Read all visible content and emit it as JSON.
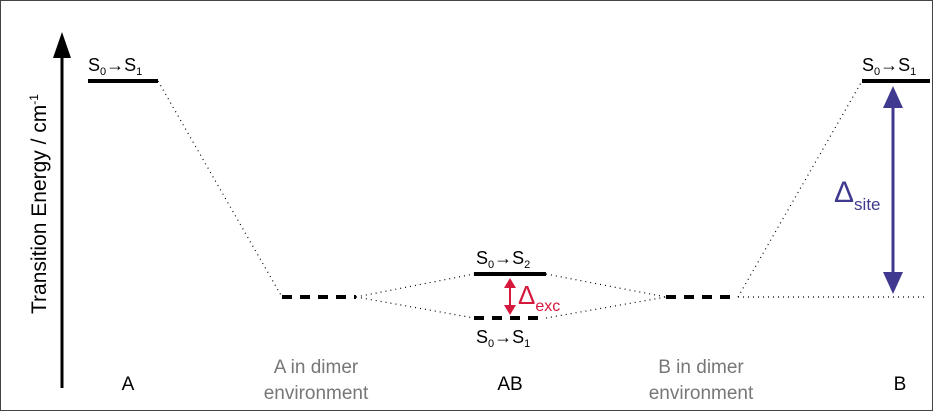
{
  "axis": {
    "ylabel": "Transition Energy / cm",
    "ylabel_sup": "-1"
  },
  "levels": {
    "a_s0s1": {
      "s": "S",
      "sub0": "0",
      "arrow": "→",
      "sub1": "1"
    },
    "b_s0s1": {
      "s": "S",
      "sub0": "0",
      "arrow": "→",
      "sub1": "1"
    },
    "ab_s0s2": {
      "s": "S",
      "sub0": "0",
      "arrow": "→",
      "sub1": "2"
    },
    "ab_s0s1": {
      "s": "S",
      "sub0": "0",
      "arrow": "→",
      "sub1": "1"
    }
  },
  "deltas": {
    "exc": {
      "symbol": "Δ",
      "sub": "exc",
      "color": "#d6183d"
    },
    "site": {
      "symbol": "Δ",
      "sub": "site",
      "color": "#3f3a8f"
    }
  },
  "columns": {
    "a": "A",
    "a_dimer_line1": "A in dimer",
    "a_dimer_line2": "environment",
    "ab": "AB",
    "b_dimer_line1": "B in dimer",
    "b_dimer_line2": "environment",
    "b": "B"
  }
}
